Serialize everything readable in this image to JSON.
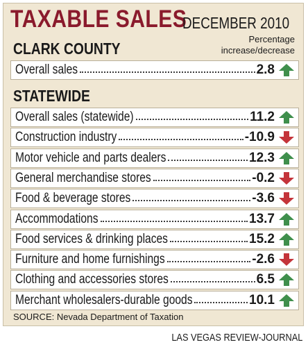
{
  "header": {
    "title": "TAXABLE SALES",
    "subtitle": "DECEMBER 2010"
  },
  "note": "Percentage\nincrease/decrease",
  "colors": {
    "up": "#3f8f4c",
    "down": "#c4343a",
    "title": "#8a1a2c",
    "background": "#f0e7d3"
  },
  "chart_data": {
    "type": "table",
    "sections": [
      {
        "name": "CLARK COUNTY",
        "rows": [
          {
            "label": "Overall sales",
            "value": "2.8",
            "direction": "up"
          }
        ]
      },
      {
        "name": "STATEWIDE",
        "rows": [
          {
            "label": "Overall sales (statewide)",
            "value": "11.2",
            "direction": "up"
          },
          {
            "label": "Construction industry",
            "value": "-10.9",
            "direction": "down"
          },
          {
            "label": "Motor vehicle and parts dealers",
            "value": "12.3",
            "direction": "up"
          },
          {
            "label": "General merchandise stores",
            "value": "-0.2",
            "direction": "down"
          },
          {
            "label": "Food & beverage stores",
            "value": "-3.6",
            "direction": "down"
          },
          {
            "label": "Accommodations",
            "value": "13.7",
            "direction": "up"
          },
          {
            "label": "Food services & drinking places",
            "value": "15.2",
            "direction": "up"
          },
          {
            "label": "Furniture and home furnishings",
            "value": "-2.6",
            "direction": "down"
          },
          {
            "label": "Clothing and accessories stores",
            "value": "6.5",
            "direction": "up"
          },
          {
            "label": "Merchant wholesalers-durable goods",
            "value": "10.1",
            "direction": "up"
          }
        ]
      }
    ]
  },
  "footer": {
    "source": "SOURCE: Nevada Department of Taxation",
    "credit": "LAS VEGAS REVIEW-JOURNAL"
  }
}
